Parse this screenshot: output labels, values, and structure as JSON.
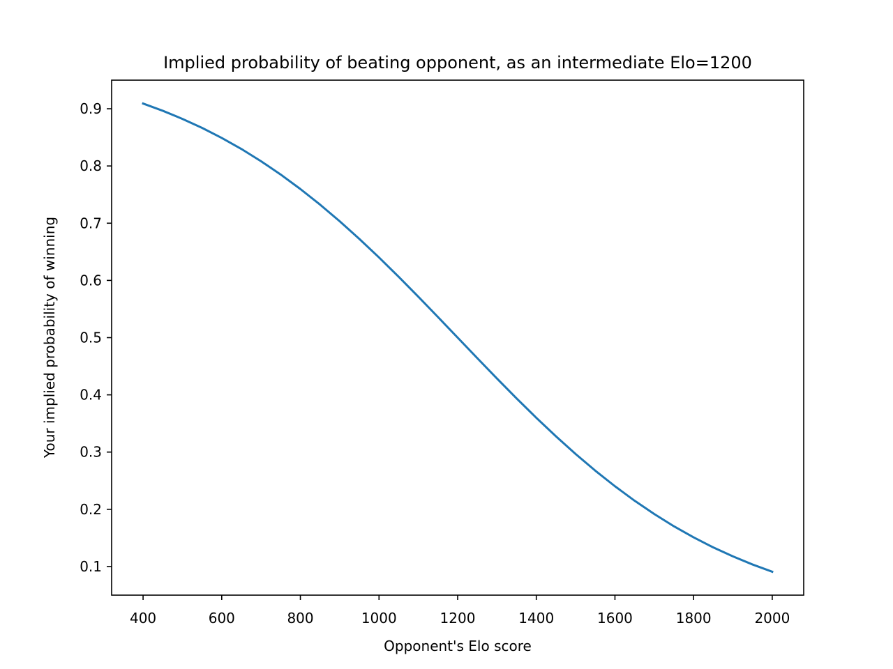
{
  "chart_data": {
    "type": "line",
    "title": "Implied probability of beating opponent, as an intermediate Elo=1200",
    "xlabel": "Opponent's Elo score",
    "ylabel": "Your implied probability of winning",
    "x": [
      400,
      450,
      500,
      550,
      600,
      650,
      700,
      750,
      800,
      850,
      900,
      950,
      1000,
      1050,
      1100,
      1150,
      1200,
      1250,
      1300,
      1350,
      1400,
      1450,
      1500,
      1550,
      1600,
      1650,
      1700,
      1750,
      1800,
      1850,
      1900,
      1950,
      2000
    ],
    "series": [
      {
        "color": "#1f77b4",
        "values": [
          0.9091,
          0.8965,
          0.8823,
          0.8666,
          0.849,
          0.8297,
          0.8083,
          0.785,
          0.7597,
          0.7325,
          0.7034,
          0.6725,
          0.6401,
          0.6063,
          0.5715,
          0.5359,
          0.5,
          0.4641,
          0.4285,
          0.3937,
          0.3599,
          0.3275,
          0.2966,
          0.2675,
          0.2403,
          0.215,
          0.1917,
          0.1703,
          0.151,
          0.1334,
          0.1177,
          0.1035,
          0.0909
        ]
      }
    ],
    "xlim": [
      320,
      2080
    ],
    "ylim": [
      0.05,
      0.95
    ],
    "xticks": [
      400,
      600,
      800,
      1000,
      1200,
      1400,
      1600,
      1800,
      2000
    ],
    "yticks": [
      0.1,
      0.2,
      0.3,
      0.4,
      0.5,
      0.6,
      0.7,
      0.8,
      0.9
    ],
    "grid": false
  }
}
